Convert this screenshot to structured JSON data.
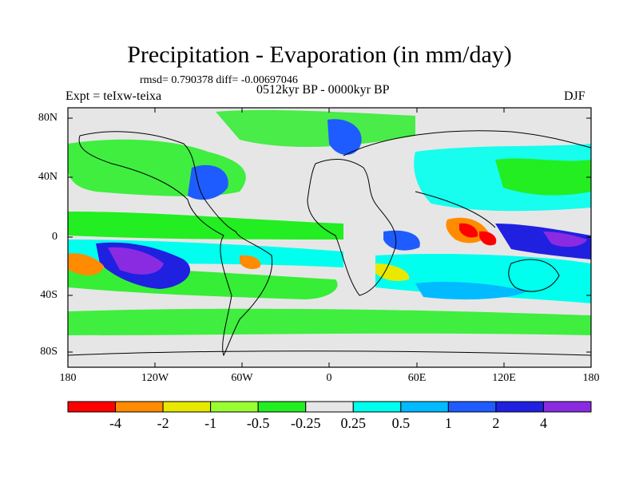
{
  "title": "Precipitation - Evaporation (in mm/day)",
  "stats": "rmsd= 0.790378  diff= -0.00697046",
  "experiment": "Expt = teIxw-teixa",
  "period": "0512kyr BP - 0000kyr BP",
  "season": "DJF",
  "y_ticks": [
    "80N",
    "40N",
    "0",
    "40S",
    "80S"
  ],
  "x_ticks": [
    "180",
    "120W",
    "60W",
    "0",
    "60E",
    "120E",
    "180"
  ],
  "colorbar": {
    "labels": [
      "-4",
      "-2",
      "-1",
      "-0.5",
      "-0.25",
      "0.25",
      "0.5",
      "1",
      "2",
      "4"
    ],
    "colors": [
      "#ff0000",
      "#ff8c00",
      "#e8e800",
      "#99ff33",
      "#22ee22",
      "#e6e6e6",
      "#00ffee",
      "#00bbff",
      "#1e5cff",
      "#2020e0",
      "#8a2be2"
    ]
  }
}
